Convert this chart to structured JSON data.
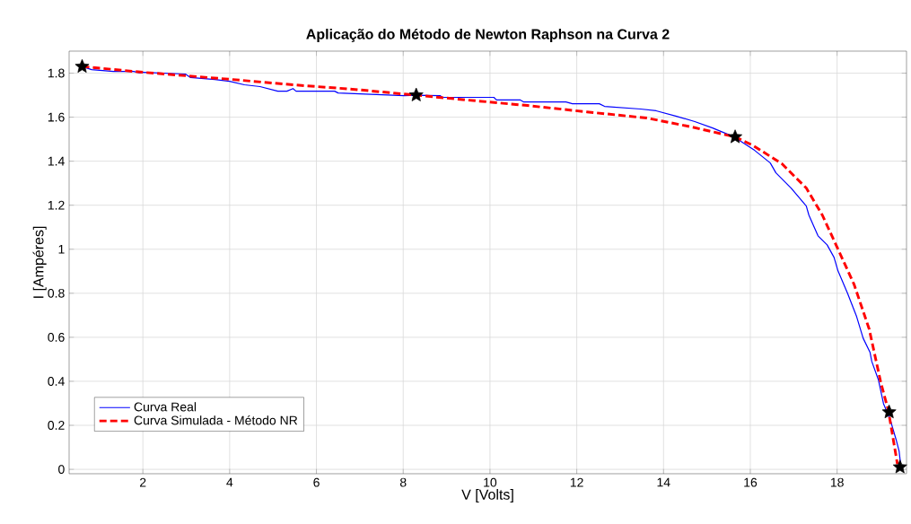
{
  "chart_data": {
    "type": "line",
    "title": "Aplicação do Método de Newton Raphson na Curva 2",
    "xlabel": "V [Volts]",
    "ylabel": "I [Ampéres]",
    "xlim": [
      0.3,
      19.6
    ],
    "ylim": [
      -0.02,
      1.9
    ],
    "xticks": [
      2,
      4,
      6,
      8,
      10,
      12,
      14,
      16,
      18
    ],
    "yticks": [
      0,
      0.2,
      0.4,
      0.6,
      0.8,
      1,
      1.2,
      1.4,
      1.6,
      1.8
    ],
    "grid": true,
    "legend": "bottom left",
    "series": [
      {
        "name": "Curva Real",
        "color": "#0000ff",
        "line_style": "solid",
        "x": [
          0.6,
          0.82,
          1.32,
          1.79,
          1.94,
          2.0,
          2.98,
          3.1,
          3.66,
          4.0,
          4.34,
          4.7,
          5.11,
          5.32,
          5.46,
          5.53,
          6.42,
          6.5,
          8.02,
          8.3,
          8.85,
          8.9,
          9.47,
          10.09,
          10.15,
          10.7,
          10.78,
          11.75,
          11.9,
          12.52,
          12.64,
          13.47,
          13.83,
          14.3,
          14.72,
          15.13,
          15.63,
          16.1,
          16.46,
          16.59,
          16.94,
          17.29,
          17.35,
          17.56,
          17.77,
          17.93,
          18.02,
          18.24,
          18.45,
          18.6,
          18.76,
          18.8,
          18.95,
          19.07,
          19.22,
          19.36,
          19.43,
          19.47
        ],
        "values": [
          1.83,
          1.816,
          1.808,
          1.808,
          1.8,
          1.804,
          1.796,
          1.78,
          1.771,
          1.763,
          1.747,
          1.739,
          1.718,
          1.718,
          1.73,
          1.718,
          1.718,
          1.71,
          1.698,
          1.7,
          1.698,
          1.69,
          1.69,
          1.69,
          1.678,
          1.678,
          1.669,
          1.669,
          1.661,
          1.661,
          1.649,
          1.637,
          1.629,
          1.604,
          1.58,
          1.551,
          1.51,
          1.449,
          1.392,
          1.347,
          1.278,
          1.196,
          1.155,
          1.061,
          1.02,
          0.963,
          0.902,
          0.8,
          0.694,
          0.596,
          0.531,
          0.49,
          0.408,
          0.298,
          0.229,
          0.135,
          0.082,
          0.012
        ]
      },
      {
        "name": "Curva Simulada - Método NR",
        "color": "#ff0000",
        "line_style": "dashed",
        "x": [
          0.6,
          2.0,
          4.07,
          5.46,
          6.83,
          8.3,
          9.47,
          10.86,
          12.23,
          13.62,
          14.66,
          15.65,
          16.05,
          16.73,
          17.29,
          17.66,
          18.04,
          18.39,
          18.74,
          19.01,
          19.18,
          19.32,
          19.39
        ],
        "values": [
          1.83,
          1.804,
          1.771,
          1.747,
          1.727,
          1.7,
          1.678,
          1.653,
          1.624,
          1.596,
          1.555,
          1.51,
          1.473,
          1.388,
          1.278,
          1.155,
          0.992,
          0.841,
          0.637,
          0.392,
          0.269,
          0.106,
          0.024
        ]
      },
      {
        "type": "scatter",
        "color": "#000000",
        "marker": "star",
        "x": [
          0.6,
          8.3,
          15.65,
          19.2,
          19.45
        ],
        "values": [
          1.83,
          1.7,
          1.51,
          0.26,
          0.01
        ]
      }
    ]
  }
}
